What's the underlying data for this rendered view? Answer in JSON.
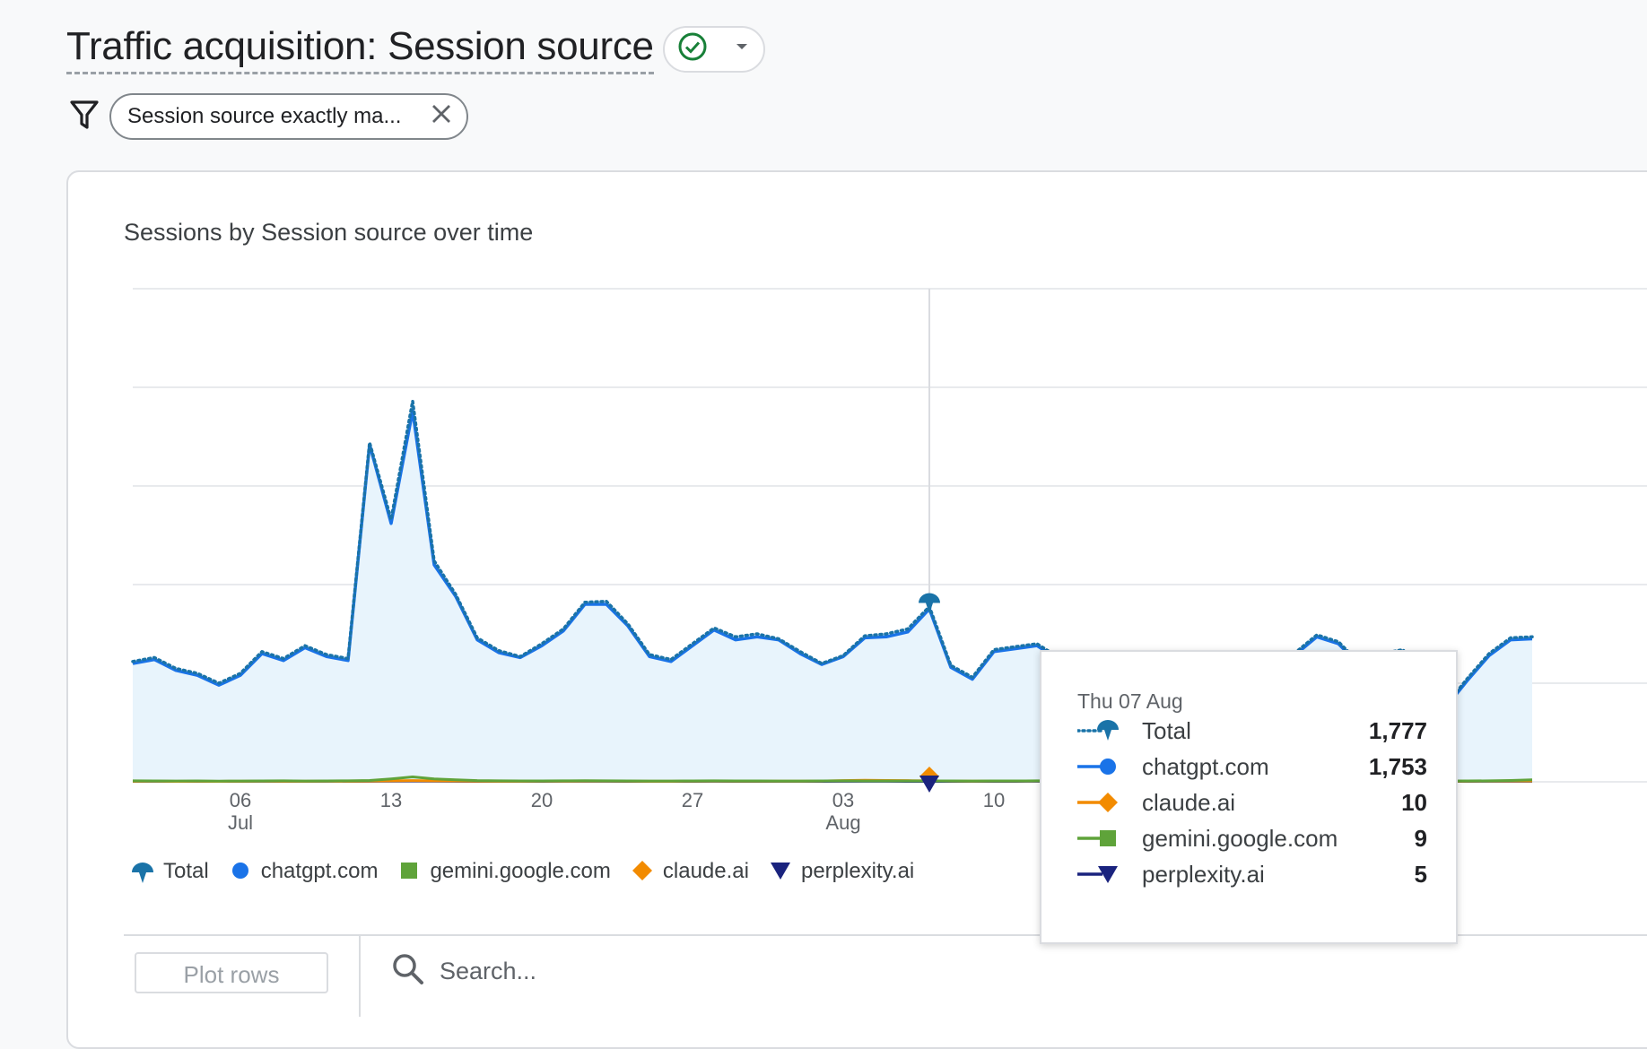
{
  "header": {
    "title": "Traffic acquisition: Session source",
    "status_icon": "check-circle-icon",
    "dropdown_icon": "caret-down-icon"
  },
  "filter": {
    "icon": "filter-icon",
    "chip_label": "Session source exactly ma...",
    "clear_icon": "close-icon"
  },
  "card": {
    "title": "Sessions by Session source over time"
  },
  "legend": [
    {
      "name": "Total",
      "marker": "pin",
      "color": "#1a73a8"
    },
    {
      "name": "chatgpt.com",
      "marker": "circle",
      "color": "#1a73e8"
    },
    {
      "name": "gemini.google.com",
      "marker": "square",
      "color": "#5fa33a"
    },
    {
      "name": "claude.ai",
      "marker": "diamond",
      "color": "#f28b00"
    },
    {
      "name": "perplexity.ai",
      "marker": "triangle",
      "color": "#1a237e"
    }
  ],
  "tooltip": {
    "date": "Thu 07 Aug",
    "rows": [
      {
        "name": "Total",
        "value": "1,777",
        "marker": "pin",
        "color": "#1a73a8"
      },
      {
        "name": "chatgpt.com",
        "value": "1,753",
        "marker": "circle",
        "color": "#1a73e8"
      },
      {
        "name": "claude.ai",
        "value": "10",
        "marker": "diamond",
        "color": "#f28b00"
      },
      {
        "name": "gemini.google.com",
        "value": "9",
        "marker": "square",
        "color": "#5fa33a"
      },
      {
        "name": "perplexity.ai",
        "value": "5",
        "marker": "triangle",
        "color": "#1a237e"
      }
    ]
  },
  "table_toolbar": {
    "plot_rows_label": "Plot rows",
    "search_placeholder": "Search..."
  },
  "chart_data": {
    "type": "line",
    "title": "Sessions by Session source over time",
    "x": [
      "Jul 01",
      "Jul 02",
      "Jul 03",
      "Jul 04",
      "Jul 05",
      "Jul 06",
      "Jul 07",
      "Jul 08",
      "Jul 09",
      "Jul 10",
      "Jul 11",
      "Jul 12",
      "Jul 13",
      "Jul 14",
      "Jul 15",
      "Jul 16",
      "Jul 17",
      "Jul 18",
      "Jul 19",
      "Jul 20",
      "Jul 21",
      "Jul 22",
      "Jul 23",
      "Jul 24",
      "Jul 25",
      "Jul 26",
      "Jul 27",
      "Jul 28",
      "Jul 29",
      "Jul 30",
      "Jul 31",
      "Aug 01",
      "Aug 02",
      "Aug 03",
      "Aug 04",
      "Aug 05",
      "Aug 06",
      "Aug 07",
      "Aug 08",
      "Aug 09",
      "Aug 10",
      "Aug 11",
      "Aug 12",
      "Aug 13",
      "Aug 14",
      "Aug 15",
      "Aug 16",
      "Aug 17",
      "Aug 18",
      "Aug 19",
      "Aug 20",
      "Aug 21",
      "Aug 22",
      "Aug 23",
      "Aug 24",
      "Aug 25",
      "Aug 26",
      "Aug 27",
      "Aug 28",
      "Aug 29",
      "Aug 30",
      "Aug 31",
      "Sep 01",
      "Sep 02",
      "Sep 03",
      "Sep 04"
    ],
    "x_tick_labels": [
      {
        "at": "Jul 06",
        "day": "06",
        "month": "Jul"
      },
      {
        "at": "Jul 13",
        "day": "13",
        "month": ""
      },
      {
        "at": "Jul 20",
        "day": "20",
        "month": ""
      },
      {
        "at": "Jul 27",
        "day": "27",
        "month": ""
      },
      {
        "at": "Aug 03",
        "day": "03",
        "month": "Aug"
      },
      {
        "at": "Aug 10",
        "day": "10",
        "month": ""
      },
      {
        "at": "Aug 17",
        "day": "17",
        "month": ""
      },
      {
        "at": "Aug 24",
        "day": "24",
        "month": ""
      },
      {
        "at": "Aug 31",
        "day": "31",
        "month": ""
      }
    ],
    "ylim": [
      0,
      5000
    ],
    "grid": true,
    "highlight": "Aug 07",
    "series": [
      {
        "name": "Total",
        "style": "dotted",
        "color": "#1a73a8",
        "values": [
          1220,
          1260,
          1150,
          1100,
          1000,
          1100,
          1320,
          1250,
          1380,
          1290,
          1250,
          3440,
          2660,
          3860,
          2240,
          1900,
          1460,
          1330,
          1270,
          1400,
          1550,
          1820,
          1830,
          1600,
          1290,
          1240,
          1400,
          1560,
          1470,
          1500,
          1450,
          1320,
          1200,
          1280,
          1480,
          1500,
          1550,
          1777,
          1180,
          1060,
          1340,
          1370,
          1400,
          1260,
          1230,
          1110,
          1010,
          1150,
          1220,
          1100,
          970,
          1120,
          1150,
          1260,
          1310,
          1490,
          1420,
          1200,
          1300,
          1340,
          1000,
          780,
          1050,
          1300,
          1460,
          1470
        ]
      },
      {
        "name": "chatgpt.com",
        "style": "solid",
        "color": "#1a73e8",
        "values": [
          1200,
          1240,
          1130,
          1080,
          980,
          1080,
          1300,
          1230,
          1360,
          1270,
          1230,
          3420,
          2620,
          3760,
          2200,
          1880,
          1440,
          1310,
          1260,
          1380,
          1530,
          1800,
          1800,
          1580,
          1270,
          1220,
          1380,
          1540,
          1440,
          1470,
          1440,
          1300,
          1190,
          1270,
          1460,
          1470,
          1520,
          1753,
          1160,
          1040,
          1320,
          1350,
          1380,
          1240,
          1210,
          1090,
          990,
          1130,
          1200,
          1080,
          950,
          1100,
          1130,
          1240,
          1290,
          1470,
          1400,
          1180,
          1280,
          1320,
          980,
          760,
          1030,
          1280,
          1440,
          1450
        ]
      },
      {
        "name": "gemini.google.com",
        "style": "solid",
        "color": "#5fa33a",
        "values": [
          10,
          9,
          8,
          9,
          7,
          8,
          9,
          10,
          8,
          9,
          10,
          14,
          30,
          50,
          30,
          20,
          12,
          10,
          9,
          9,
          10,
          11,
          10,
          9,
          8,
          8,
          9,
          10,
          9,
          9,
          8,
          8,
          9,
          10,
          9,
          9,
          9,
          9,
          9,
          8,
          9,
          9,
          10,
          9,
          8,
          8,
          9,
          9,
          10,
          9,
          8,
          9,
          9,
          10,
          9,
          11,
          20,
          14,
          10,
          9,
          9,
          8,
          9,
          10,
          14,
          20
        ]
      },
      {
        "name": "claude.ai",
        "style": "solid",
        "color": "#f28b00",
        "values": [
          6,
          7,
          5,
          6,
          5,
          6,
          7,
          6,
          6,
          7,
          6,
          8,
          10,
          12,
          10,
          9,
          7,
          6,
          6,
          7,
          7,
          8,
          8,
          7,
          6,
          6,
          7,
          8,
          7,
          7,
          7,
          7,
          8,
          12,
          16,
          14,
          12,
          10,
          8,
          7,
          8,
          8,
          9,
          8,
          7,
          7,
          8,
          8,
          9,
          8,
          7,
          8,
          8,
          9,
          8,
          9,
          8,
          7,
          8,
          8,
          7,
          6,
          7,
          8,
          9,
          9
        ]
      },
      {
        "name": "perplexity.ai",
        "style": "solid",
        "color": "#1a237e",
        "values": [
          5,
          6,
          4,
          5,
          4,
          5,
          6,
          5,
          5,
          6,
          5,
          6,
          7,
          8,
          7,
          6,
          5,
          5,
          5,
          5,
          6,
          6,
          6,
          5,
          5,
          5,
          5,
          6,
          5,
          5,
          5,
          5,
          5,
          6,
          6,
          6,
          5,
          5,
          5,
          5,
          5,
          5,
          6,
          5,
          5,
          5,
          5,
          5,
          6,
          5,
          5,
          5,
          5,
          6,
          5,
          6,
          6,
          5,
          5,
          5,
          5,
          5,
          5,
          6,
          6,
          6
        ]
      }
    ]
  }
}
